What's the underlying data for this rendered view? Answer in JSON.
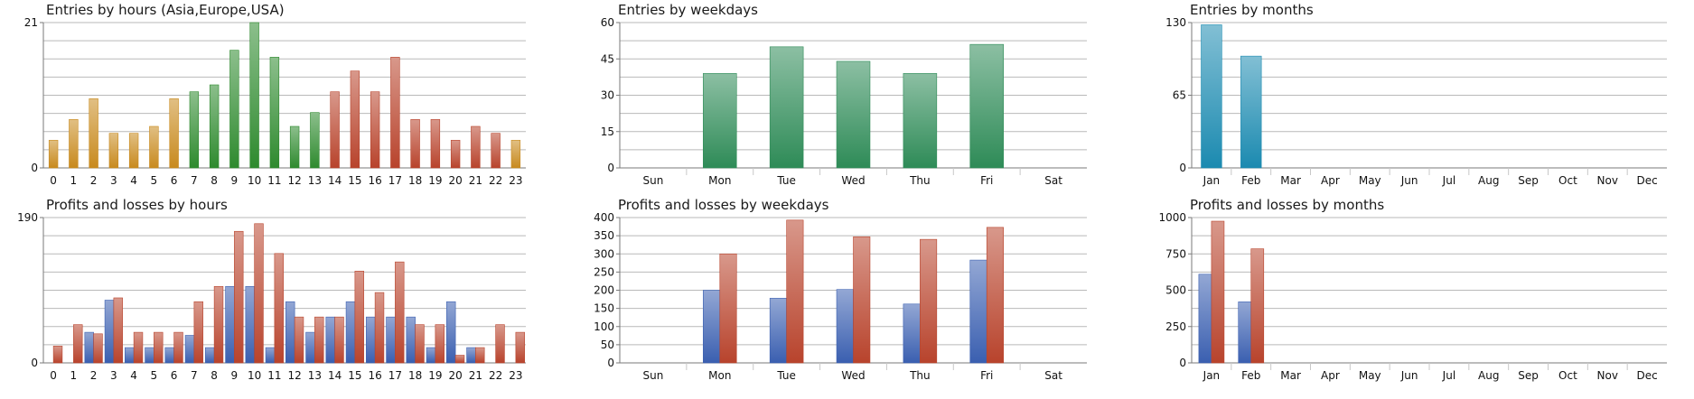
{
  "chart_data": [
    {
      "type": "bar",
      "title": "Entries by hours (Asia,Europe,USA)",
      "categories": [
        "0",
        "1",
        "2",
        "3",
        "4",
        "5",
        "6",
        "7",
        "8",
        "9",
        "10",
        "11",
        "12",
        "13",
        "14",
        "15",
        "16",
        "17",
        "18",
        "19",
        "20",
        "21",
        "22",
        "23"
      ],
      "values": [
        4,
        7,
        10,
        5,
        5,
        6,
        10,
        11,
        12,
        17,
        21,
        16,
        6,
        8,
        11,
        14,
        11,
        16,
        7,
        7,
        4,
        6,
        5,
        4
      ],
      "category_colors": [
        "#c88a1e",
        "#c88a1e",
        "#c88a1e",
        "#c88a1e",
        "#c88a1e",
        "#c88a1e",
        "#c88a1e",
        "#2e8a2e",
        "#2e8a2e",
        "#2e8a2e",
        "#2e8a2e",
        "#2e8a2e",
        "#2e8a2e",
        "#2e8a2e",
        "#b8432c",
        "#b8432c",
        "#b8432c",
        "#b8432c",
        "#b8432c",
        "#b8432c",
        "#b8432c",
        "#b8432c",
        "#b8432c",
        "#c88a1e"
      ],
      "yticks": [
        0,
        21
      ],
      "ylim": [
        0,
        21
      ],
      "grid": true
    },
    {
      "type": "bar",
      "title": "Entries by weekdays",
      "categories": [
        "Sun",
        "Mon",
        "Tue",
        "Wed",
        "Thu",
        "Fri",
        "Sat"
      ],
      "values": [
        0,
        39,
        50,
        44,
        39,
        51,
        0
      ],
      "colors": [
        "#2e8b57"
      ],
      "yticks": [
        0,
        15,
        30,
        45,
        60
      ],
      "ylim": [
        0,
        60
      ],
      "grid": true
    },
    {
      "type": "bar",
      "title": "Entries by months",
      "categories": [
        "Jan",
        "Feb",
        "Mar",
        "Apr",
        "May",
        "Jun",
        "Jul",
        "Aug",
        "Sep",
        "Oct",
        "Nov",
        "Dec"
      ],
      "values": [
        128,
        100,
        0,
        0,
        0,
        0,
        0,
        0,
        0,
        0,
        0,
        0
      ],
      "colors": [
        "#1b8ab0"
      ],
      "yticks": [
        0,
        65,
        130
      ],
      "ylim": [
        0,
        130
      ],
      "grid": true
    },
    {
      "type": "bar",
      "title": "Profits and losses by hours",
      "categories": [
        "0",
        "1",
        "2",
        "3",
        "4",
        "5",
        "6",
        "7",
        "8",
        "9",
        "10",
        "11",
        "12",
        "13",
        "14",
        "15",
        "16",
        "17",
        "18",
        "19",
        "20",
        "21",
        "22",
        "23"
      ],
      "series": [
        {
          "values": [
            0,
            0,
            40,
            82,
            20,
            20,
            20,
            36,
            20,
            100,
            100,
            20,
            80,
            40,
            60,
            80,
            60,
            60,
            60,
            20,
            80,
            20,
            0,
            0
          ]
        },
        {
          "values": [
            22,
            50,
            38,
            85,
            40,
            40,
            40,
            80,
            100,
            172,
            182,
            143,
            60,
            60,
            60,
            120,
            92,
            132,
            50,
            50,
            10,
            20,
            50,
            40
          ]
        }
      ],
      "colors": [
        "#3a5fb0",
        "#b8432c"
      ],
      "yticks": [
        0,
        190
      ],
      "ylim": [
        0,
        190
      ],
      "grid": true
    },
    {
      "type": "bar",
      "title": "Profits and losses by weekdays",
      "categories": [
        "Sun",
        "Mon",
        "Tue",
        "Wed",
        "Thu",
        "Fri",
        "Sat"
      ],
      "series": [
        {
          "values": [
            0,
            200,
            178,
            202,
            162,
            283,
            0
          ]
        },
        {
          "values": [
            0,
            300,
            393,
            347,
            340,
            373,
            0
          ]
        }
      ],
      "colors": [
        "#3a5fb0",
        "#b8432c"
      ],
      "yticks": [
        0,
        50,
        100,
        150,
        200,
        250,
        300,
        350,
        400
      ],
      "ylim": [
        0,
        400
      ],
      "grid": true
    },
    {
      "type": "bar",
      "title": "Profits and losses by months",
      "categories": [
        "Jan",
        "Feb",
        "Mar",
        "Apr",
        "May",
        "Jun",
        "Jul",
        "Aug",
        "Sep",
        "Oct",
        "Nov",
        "Dec"
      ],
      "series": [
        {
          "values": [
            610,
            420,
            0,
            0,
            0,
            0,
            0,
            0,
            0,
            0,
            0,
            0
          ]
        },
        {
          "values": [
            975,
            785,
            0,
            0,
            0,
            0,
            0,
            0,
            0,
            0,
            0,
            0
          ]
        }
      ],
      "colors": [
        "#3a5fb0",
        "#b8432c"
      ],
      "yticks": [
        0,
        250,
        500,
        750,
        1000
      ],
      "ylim": [
        0,
        1000
      ],
      "grid": true
    }
  ]
}
